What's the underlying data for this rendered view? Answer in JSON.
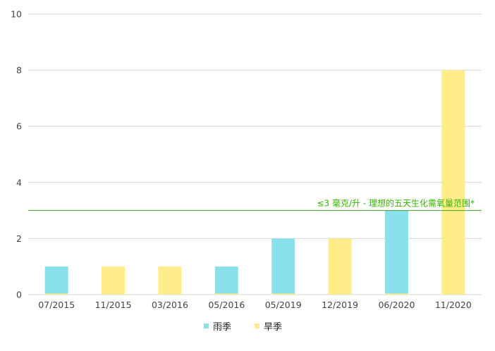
{
  "chart_data": {
    "type": "bar",
    "categories": [
      "07/2015",
      "11/2015",
      "03/2016",
      "05/2016",
      "05/2019",
      "12/2019",
      "06/2020",
      "11/2020"
    ],
    "series": [
      {
        "name": "雨季",
        "color": "#8ae0eb",
        "values": [
          1,
          0,
          0,
          1,
          2,
          0,
          3,
          0
        ]
      },
      {
        "name": "旱季",
        "color": "#ffed8a",
        "values": [
          0,
          1,
          1,
          0,
          0,
          2,
          0,
          8
        ]
      }
    ],
    "ylim": [
      0,
      10
    ],
    "yticks": [
      "0",
      "2",
      "4",
      "6",
      "8",
      "10"
    ],
    "grid": true,
    "legend": "bottom",
    "reference_line": {
      "value": 3,
      "label": "≤3 毫克/升 - 理想的五天生化需氧量范围*",
      "color": "#3f9f1f",
      "label_color": "#33b300"
    }
  }
}
